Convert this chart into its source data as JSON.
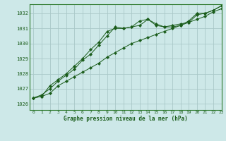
{
  "title": "Graphe pression niveau de la mer (hPa)",
  "bg_color": "#cde8e8",
  "grid_color": "#aac8c8",
  "line_color": "#1a5c1a",
  "border_color": "#2d7a2d",
  "xlim": [
    -0.5,
    23
  ],
  "ylim": [
    1025.6,
    1032.6
  ],
  "yticks": [
    1026,
    1027,
    1028,
    1029,
    1030,
    1031,
    1032
  ],
  "xticks": [
    0,
    1,
    2,
    3,
    4,
    5,
    6,
    7,
    8,
    9,
    10,
    11,
    12,
    13,
    14,
    15,
    16,
    17,
    18,
    19,
    20,
    21,
    22,
    23
  ],
  "series1": [
    1026.4,
    1026.5,
    1026.7,
    1027.2,
    1027.5,
    1027.8,
    1028.1,
    1028.4,
    1028.7,
    1029.1,
    1029.4,
    1029.7,
    1030.0,
    1030.2,
    1030.4,
    1030.6,
    1030.8,
    1031.0,
    1031.2,
    1031.4,
    1031.6,
    1031.8,
    1032.1,
    1032.3
  ],
  "series2": [
    1026.4,
    1026.5,
    1027.2,
    1027.6,
    1028.0,
    1028.5,
    1029.0,
    1029.6,
    1030.1,
    1030.8,
    1031.0,
    1031.0,
    1031.1,
    1031.5,
    1031.6,
    1031.2,
    1031.1,
    1031.2,
    1031.3,
    1031.4,
    1031.9,
    1032.0,
    1032.2,
    1032.5
  ],
  "series3": [
    1026.4,
    1026.6,
    1027.0,
    1027.5,
    1027.9,
    1028.3,
    1028.9,
    1029.3,
    1029.9,
    1030.5,
    1031.1,
    1031.0,
    1031.1,
    1031.2,
    1031.6,
    1031.3,
    1031.1,
    1031.1,
    1031.2,
    1031.5,
    1032.0,
    1032.0,
    1032.2,
    1032.5
  ]
}
